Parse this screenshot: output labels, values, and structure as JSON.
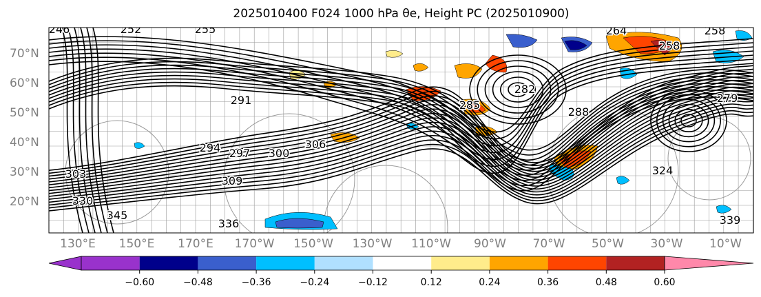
{
  "title": "2025010400 F024 1000 hPa θe, Height PC (2025010900)",
  "lat_labels": [
    "70°N",
    "60°N",
    "50°N",
    "40°N",
    "30°N",
    "20°N"
  ],
  "lon_labels": [
    "130°E",
    "150°E",
    "170°E",
    "170°W",
    "150°W",
    "130°W",
    "110°W",
    "90°W",
    "70°W",
    "50°W",
    "30°W",
    "10°W"
  ],
  "contour_labels": [
    "246",
    "252",
    "255",
    "264",
    "258",
    "258",
    "291",
    "294",
    "297",
    "300",
    "306",
    "303",
    "309",
    "330",
    "336",
    "345",
    "324",
    "339",
    "282",
    "285",
    "288",
    "279"
  ],
  "colorbar": {
    "ticks": [
      "−0.60",
      "−0.48",
      "−0.36",
      "−0.24",
      "−0.12",
      "0.12",
      "0.24",
      "0.36",
      "0.48",
      "0.60"
    ],
    "colors": [
      "#9932cc",
      "#00008b",
      "#3a5fcd",
      "#00bfff",
      "#b0e0ff",
      "#ffffff",
      "#ffec8b",
      "#ffa500",
      "#ff4500",
      "#b22222",
      "#ff88aa"
    ]
  }
}
